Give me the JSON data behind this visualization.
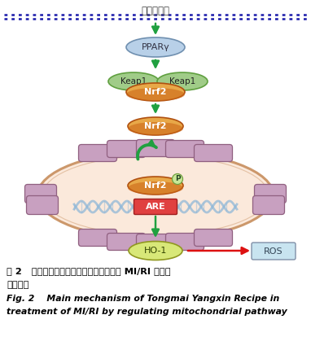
{
  "title_cn": "通脉养心方",
  "dotted_line_color": "#1a1aaa",
  "ppar_label": "PPARγ",
  "keap1_left": "Keap1",
  "keap1_right": "Keap1",
  "nrf2_complex": "Nrf2",
  "nrf2_free": "Nrf2",
  "nrf2_nucleus": "Nrf2",
  "are_label": "ARE",
  "p_label": "P",
  "ho1_label": "HO-1",
  "ros_label": "ROS",
  "caption_cn_1": "图 2   通脉养心方通过调节线粒体途径治疗 MI/RI 的主要",
  "caption_cn_2": "作用机制",
  "caption_en_1": "Fig. 2    Main mechanism of Tongmai Yangxin Recipe in",
  "caption_en_2": "treatment of MI/RI by regulating mitochondrial pathway",
  "ppar_color": "#b8d0e8",
  "ppar_edge": "#7090b0",
  "keap_color": "#a0cc88",
  "keap_edge": "#60a040",
  "nrf2_color_top": "#e8a040",
  "nrf2_color_bot": "#c86010",
  "nrf2_edge": "#b05010",
  "ho1_color": "#d8e878",
  "ho1_edge": "#909820",
  "ros_color": "#c8e4f0",
  "ros_edge": "#8090a8",
  "nucleus_fill": "#fbe8d8",
  "nucleus_edge": "#c89060",
  "mito_fill": "#c8a0c0",
  "mito_edge": "#906080",
  "dna_color": "#90b8d8",
  "are_fill": "#e04040",
  "are_edge": "#a02020",
  "p_fill": "#c8e898",
  "p_edge": "#70a040",
  "green_arrow": "#20a040",
  "red_arrow": "#dd1111",
  "background": "#ffffff"
}
